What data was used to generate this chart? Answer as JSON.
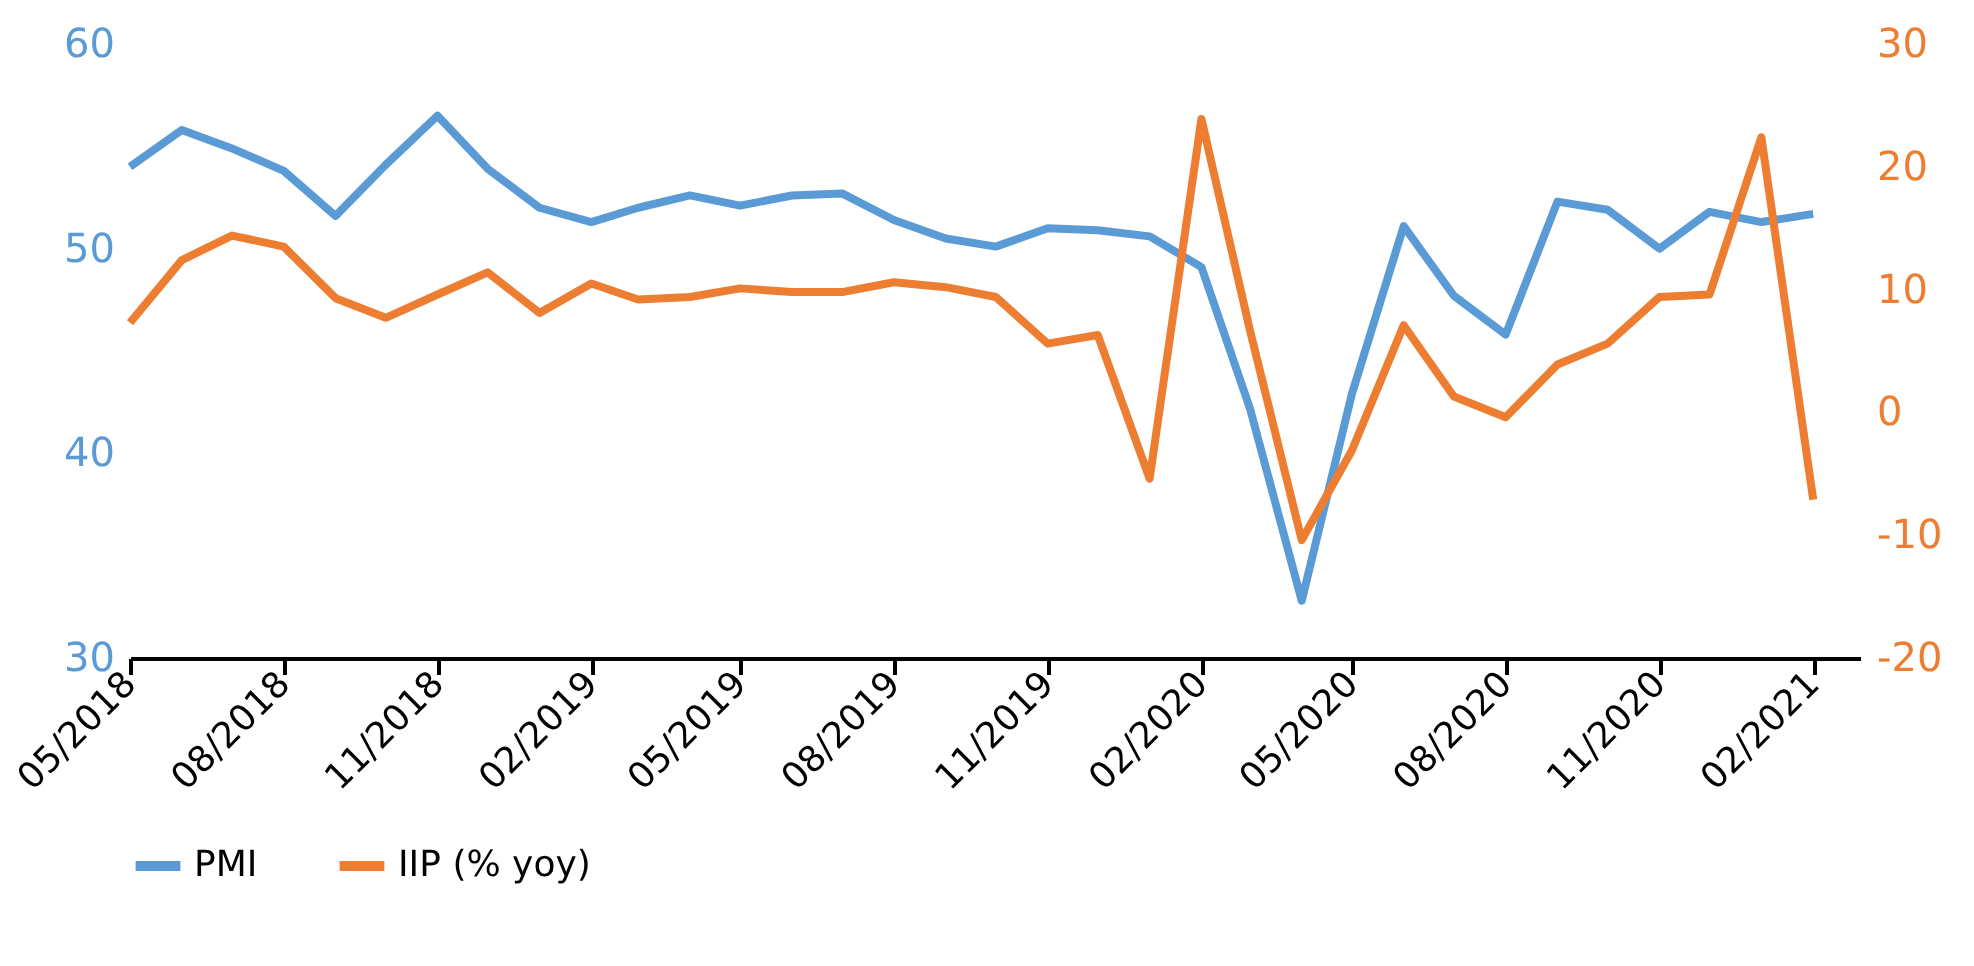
{
  "chart_data": {
    "type": "line",
    "x": [
      "2018-05",
      "2018-06",
      "2018-07",
      "2018-08",
      "2018-09",
      "2018-10",
      "2018-11",
      "2018-12",
      "2019-01",
      "2019-02",
      "2019-03",
      "2019-04",
      "2019-05",
      "2019-06",
      "2019-07",
      "2019-08",
      "2019-09",
      "2019-10",
      "2019-11",
      "2019-12",
      "2020-01",
      "2020-02",
      "2020-03",
      "2020-04",
      "2020-05",
      "2020-06",
      "2020-07",
      "2020-08",
      "2020-09",
      "2020-10",
      "2020-11",
      "2020-12",
      "2021-01",
      "2021-02"
    ],
    "series": [
      {
        "name": "PMI",
        "color": "#5b9bd5",
        "values": [
          54.0,
          55.8,
          54.9,
          53.8,
          51.6,
          54.1,
          56.5,
          53.9,
          52.0,
          51.3,
          52.0,
          52.6,
          52.1,
          52.6,
          52.7,
          51.4,
          50.5,
          50.1,
          51.0,
          50.9,
          50.6,
          49.1,
          42.2,
          32.8,
          42.9,
          51.1,
          47.7,
          45.8,
          52.3,
          51.9,
          50.0,
          51.8,
          51.3,
          51.7
        ]
      },
      {
        "name": "IIP (% yoy)",
        "color": "#ed7d31",
        "axis": "y2",
        "values": [
          7.3,
          12.4,
          14.4,
          13.5,
          9.3,
          7.7,
          9.6,
          11.4,
          8.1,
          10.5,
          9.2,
          9.4,
          10.1,
          9.8,
          9.8,
          10.6,
          10.2,
          9.4,
          5.6,
          6.3,
          -5.4,
          23.9,
          6.7,
          -10.4,
          -3.1,
          7.1,
          1.3,
          -0.4,
          3.9,
          5.6,
          9.4,
          9.6,
          22.4,
          -7.1
        ]
      }
    ],
    "xlim": [
      "2018-05",
      "2021-03"
    ],
    "xticks": [
      {
        "value": "2018-05",
        "label": "05/2018"
      },
      {
        "value": "2018-08",
        "label": "08/2018"
      },
      {
        "value": "2018-11",
        "label": "11/2018"
      },
      {
        "value": "2019-02",
        "label": "02/2019"
      },
      {
        "value": "2019-05",
        "label": "05/2019"
      },
      {
        "value": "2019-08",
        "label": "08/2019"
      },
      {
        "value": "2019-11",
        "label": "11/2019"
      },
      {
        "value": "2020-02",
        "label": "02/2020"
      },
      {
        "value": "2020-05",
        "label": "05/2020"
      },
      {
        "value": "2020-08",
        "label": "08/2020"
      },
      {
        "value": "2020-11",
        "label": "11/2020"
      },
      {
        "value": "2021-02",
        "label": "02/2021"
      }
    ],
    "ylim": [
      30,
      60
    ],
    "yticks": [
      30,
      40,
      50,
      60
    ],
    "y2lim": [
      -20,
      30
    ],
    "y2ticks": [
      -20,
      -10,
      0,
      10,
      20,
      30
    ],
    "grid": false,
    "legend": "bottom",
    "marker": "none",
    "line_style": "solid"
  }
}
